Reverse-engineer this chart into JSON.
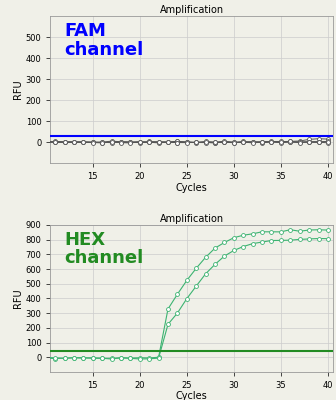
{
  "title": "Amplification",
  "xlabel": "Cycles",
  "ylabel": "RFU",
  "fam_label": "FAM\nchannel",
  "hex_label": "HEX\nchannel",
  "fam_color": "#0000FF",
  "hex_color": "#228B22",
  "fam_line_color": "#555555",
  "hex_line_color": "#3CB371",
  "fam_ylim": [
    -100,
    600
  ],
  "hex_ylim": [
    -100,
    900
  ],
  "fam_yticks": [
    0,
    100,
    200,
    300,
    400,
    500
  ],
  "hex_yticks": [
    0,
    100,
    200,
    300,
    400,
    500,
    600,
    700,
    800,
    900
  ],
  "xlim": [
    10.5,
    40.5
  ],
  "xticks": [
    15,
    20,
    25,
    30,
    35,
    40
  ],
  "fam_threshold": 30,
  "hex_threshold": 42,
  "n_cycles": 40,
  "background_color": "#f0f0e8",
  "grid_color": "#cccccc",
  "fam_n_traces": 4,
  "hex_ct1": 24.0,
  "hex_ct2": 25.0,
  "hex_L1": 880,
  "hex_L2": 820,
  "hex_k": 0.45
}
